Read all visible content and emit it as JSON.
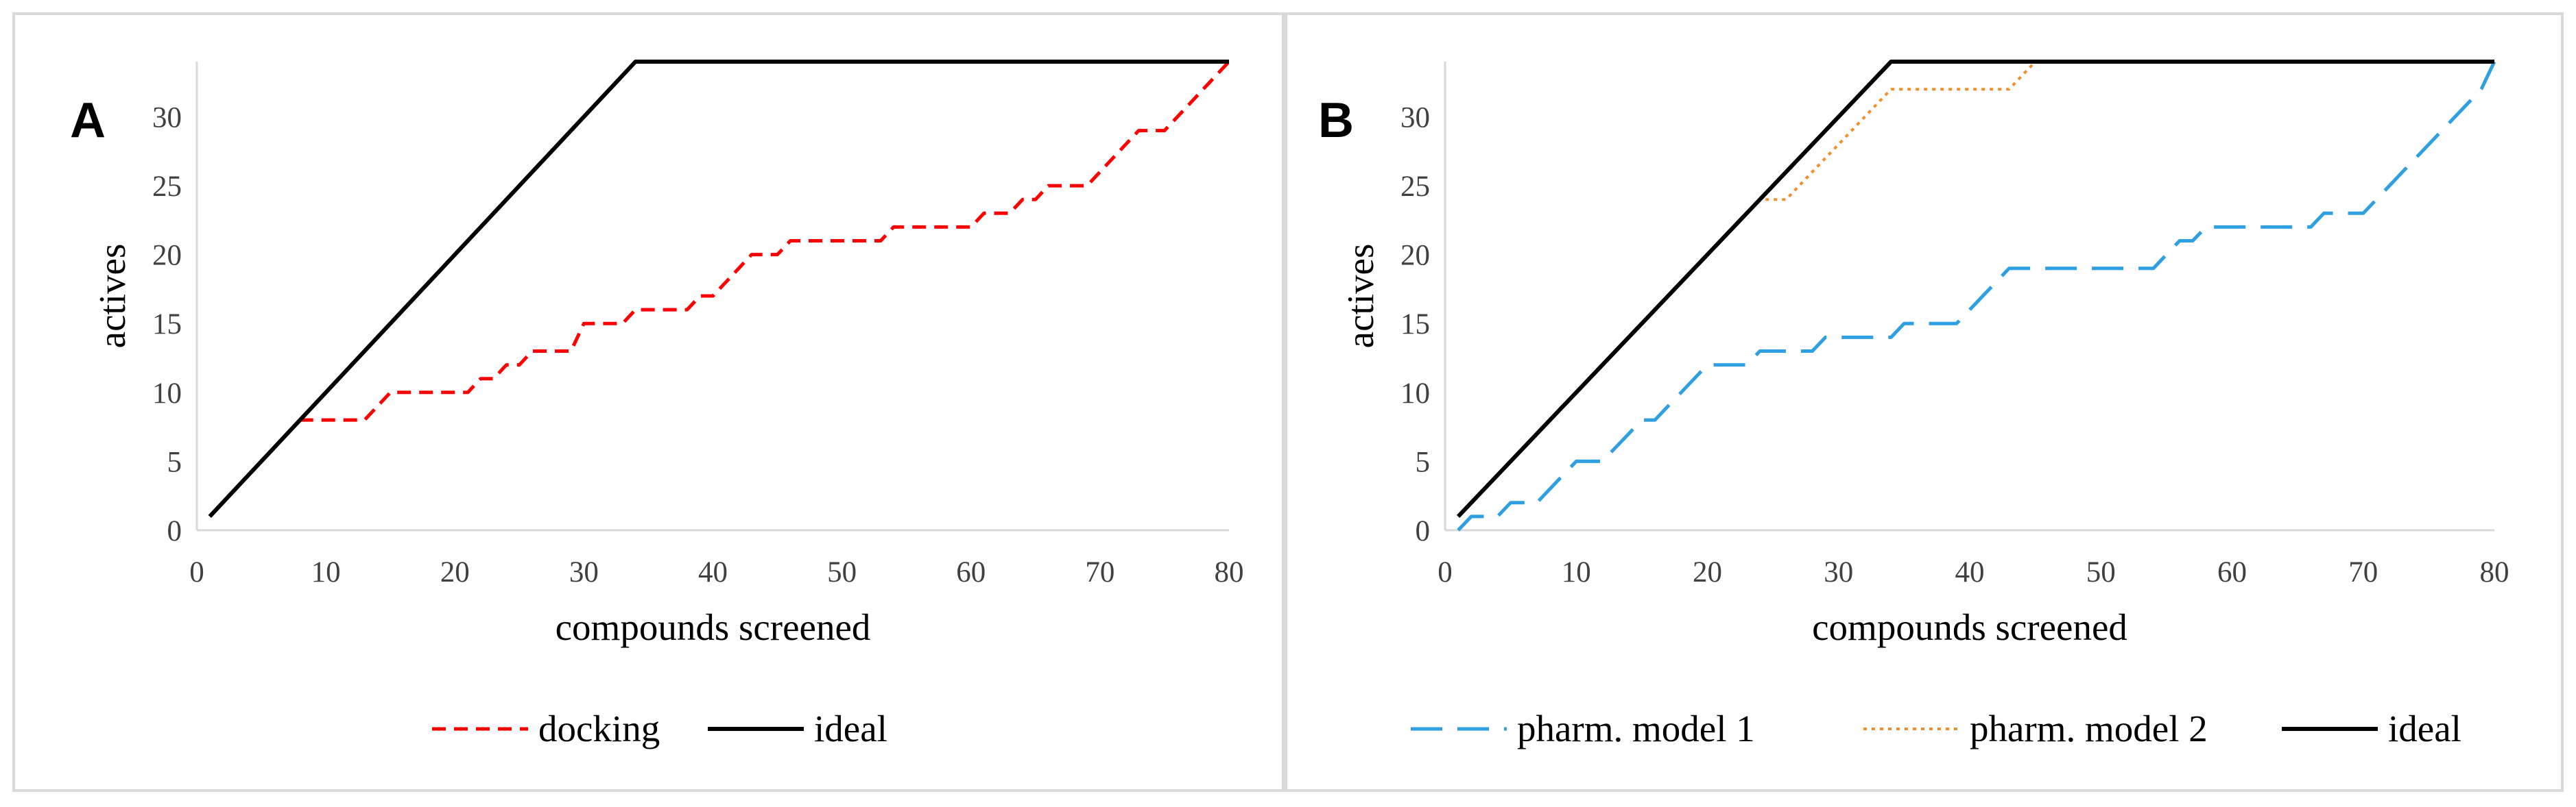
{
  "chart_data": [
    {
      "type": "line",
      "panel_label": "A",
      "xlabel": "compounds screened",
      "ylabel": "actives",
      "xlim": [
        0,
        80
      ],
      "ylim": [
        0,
        34
      ],
      "xticks": [
        0,
        10,
        20,
        30,
        40,
        50,
        60,
        70,
        80
      ],
      "yticks": [
        0,
        5,
        10,
        15,
        20,
        25,
        30
      ],
      "grid": false,
      "legend_position": "bottom",
      "series": [
        {
          "name": "docking",
          "color": "#ff0000",
          "dash": "dashed",
          "x": [
            1,
            8,
            9,
            13,
            15,
            21,
            22,
            23,
            24,
            25,
            26,
            27,
            29,
            30,
            31,
            33,
            34,
            35,
            36,
            38,
            39,
            40,
            41,
            42,
            43,
            44,
            45,
            46,
            52,
            53,
            54,
            60,
            61,
            62,
            63,
            64,
            65,
            66,
            67,
            68,
            69,
            70,
            71,
            72,
            73,
            74,
            75,
            76,
            77,
            78,
            79,
            80
          ],
          "y": [
            1,
            8,
            8,
            8,
            10,
            10,
            11,
            11,
            12,
            12,
            13,
            13,
            13,
            15,
            15,
            15,
            16,
            16,
            16,
            16,
            17,
            17,
            18,
            19,
            20,
            20,
            20,
            21,
            21,
            21,
            22,
            22,
            23,
            23,
            23,
            24,
            24,
            25,
            25,
            25,
            25,
            26,
            27,
            28,
            29,
            29,
            29,
            30,
            31,
            32,
            33,
            34
          ]
        },
        {
          "name": "ideal",
          "color": "#000000",
          "dash": "solid",
          "x": [
            1,
            34,
            80
          ],
          "y": [
            1,
            34,
            34
          ]
        }
      ]
    },
    {
      "type": "line",
      "panel_label": "B",
      "xlabel": "compounds screened",
      "ylabel": "actives",
      "xlim": [
        0,
        80
      ],
      "ylim": [
        0,
        34
      ],
      "xticks": [
        0,
        10,
        20,
        30,
        40,
        50,
        60,
        70,
        80
      ],
      "yticks": [
        0,
        5,
        10,
        15,
        20,
        25,
        30
      ],
      "grid": false,
      "legend_position": "bottom",
      "series": [
        {
          "name": "pharm. model 1",
          "color": "#2e9fe0",
          "dash": "long-dashed",
          "x": [
            1,
            2,
            3,
            4,
            5,
            6,
            7,
            8,
            9,
            10,
            11,
            12,
            13,
            14,
            15,
            16,
            17,
            18,
            19,
            20,
            21,
            22,
            23,
            24,
            25,
            26,
            27,
            28,
            29,
            30,
            31,
            32,
            33,
            34,
            35,
            36,
            37,
            38,
            39,
            40,
            41,
            42,
            43,
            44,
            45,
            46,
            47,
            48,
            49,
            50,
            51,
            52,
            53,
            54,
            55,
            56,
            57,
            58,
            59,
            60,
            61,
            62,
            63,
            64,
            65,
            66,
            67,
            68,
            69,
            70,
            71,
            72,
            73,
            74,
            75,
            76,
            77,
            78,
            79,
            80
          ],
          "y": [
            0,
            1,
            1,
            1,
            2,
            2,
            2,
            3,
            4,
            5,
            5,
            5,
            6,
            7,
            8,
            8,
            9,
            10,
            11,
            12,
            12,
            12,
            12,
            13,
            13,
            13,
            13,
            13,
            14,
            14,
            14,
            14,
            14,
            14,
            15,
            15,
            15,
            15,
            15,
            16,
            17,
            18,
            19,
            19,
            19,
            19,
            19,
            19,
            19,
            19,
            19,
            19,
            19,
            19,
            20,
            21,
            21,
            22,
            22,
            22,
            22,
            22,
            22,
            22,
            22,
            22,
            23,
            23,
            23,
            23,
            24,
            25,
            26,
            27,
            28,
            29,
            30,
            31,
            32,
            34
          ]
        },
        {
          "name": "pharm. model 2",
          "color": "#f28e2b",
          "dash": "dotted",
          "x": [
            23,
            24,
            25,
            26,
            27,
            28,
            29,
            30,
            31,
            32,
            33,
            34,
            35,
            36,
            37,
            38,
            39,
            40,
            41,
            42,
            43,
            44,
            45
          ],
          "y": [
            23,
            24,
            24,
            24,
            25,
            26,
            27,
            28,
            29,
            30,
            31,
            32,
            32,
            32,
            32,
            32,
            32,
            32,
            32,
            32,
            32,
            33,
            34
          ]
        },
        {
          "name": "ideal",
          "color": "#000000",
          "dash": "solid",
          "x": [
            1,
            34,
            80
          ],
          "y": [
            1,
            34,
            34
          ]
        }
      ]
    }
  ]
}
